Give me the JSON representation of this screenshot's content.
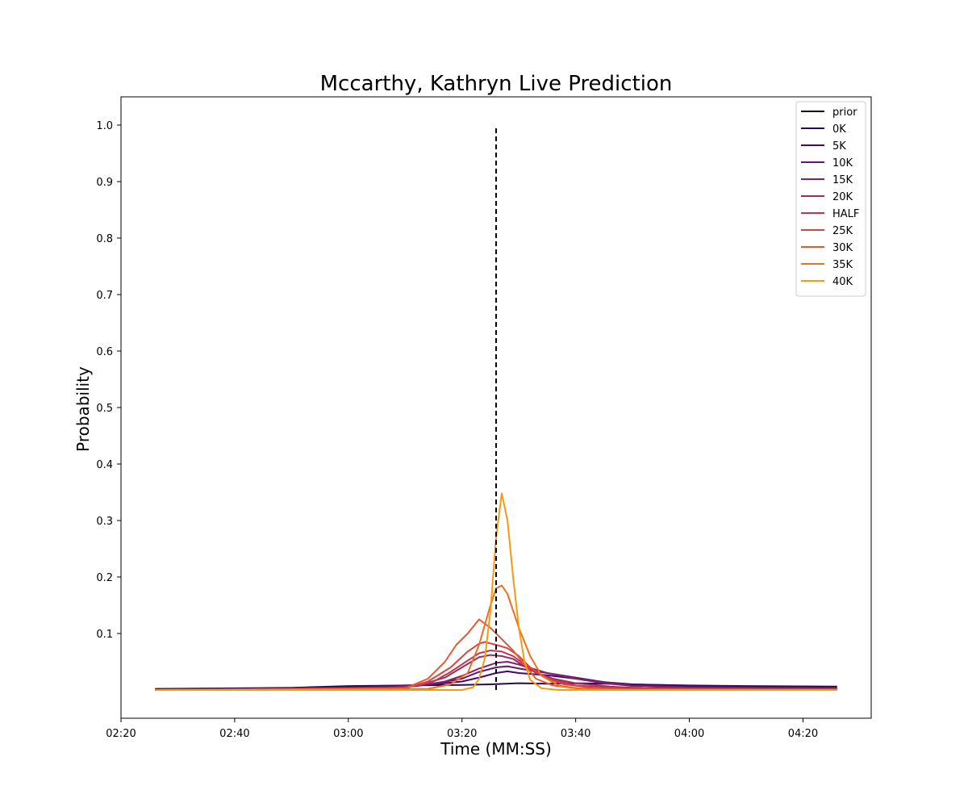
{
  "chart_data": {
    "type": "line",
    "title": "Mccarthy, Kathryn Live Prediction",
    "xlabel": "Time (MM:SS)",
    "ylabel": "Probability",
    "x_range_seconds": [
      140,
      272
    ],
    "ylim": [
      -0.05,
      1.05
    ],
    "x_tick_values": [
      140,
      160,
      180,
      200,
      220,
      240,
      260
    ],
    "x_tick_labels": [
      "02:20",
      "02:40",
      "03:00",
      "03:20",
      "03:40",
      "04:00",
      "04:20"
    ],
    "y_ticks": [
      0.1,
      0.2,
      0.3,
      0.4,
      0.5,
      0.6,
      0.7,
      0.8,
      0.9,
      1.0
    ],
    "y_tick_labels": [
      "0.1",
      "0.2",
      "0.3",
      "0.4",
      "0.5",
      "0.6",
      "0.7",
      "0.8",
      "0.9",
      "1.0"
    ],
    "grid": false,
    "legend_position": "top-right",
    "prior": {
      "name": "prior",
      "x": [
        206,
        206
      ],
      "y": [
        0,
        1.0
      ],
      "color": "#000000",
      "dash": true
    },
    "series": [
      {
        "name": "0K",
        "color": "#2d0a4e",
        "x": [
          146,
          160,
          170,
          180,
          190,
          200,
          205,
          210,
          215,
          220,
          225,
          230,
          240,
          250,
          266
        ],
        "y": [
          0.002,
          0.003,
          0.004,
          0.007,
          0.008,
          0.009,
          0.01,
          0.012,
          0.011,
          0.012,
          0.011,
          0.01,
          0.008,
          0.007,
          0.006
        ]
      },
      {
        "name": "5K",
        "color": "#460b68",
        "x": [
          146,
          170,
          180,
          190,
          195,
          200,
          203,
          206,
          208,
          210,
          215,
          220,
          225,
          230,
          240,
          250,
          266
        ],
        "y": [
          0.001,
          0.003,
          0.005,
          0.008,
          0.01,
          0.015,
          0.022,
          0.03,
          0.033,
          0.03,
          0.026,
          0.02,
          0.014,
          0.01,
          0.007,
          0.005,
          0.004
        ]
      },
      {
        "name": "10K",
        "color": "#65156e",
        "x": [
          146,
          180,
          190,
          195,
          200,
          203,
          206,
          208,
          210,
          215,
          220,
          225,
          230,
          240,
          266
        ],
        "y": [
          0.0,
          0.003,
          0.007,
          0.011,
          0.02,
          0.032,
          0.04,
          0.042,
          0.038,
          0.03,
          0.022,
          0.014,
          0.008,
          0.005,
          0.003
        ]
      },
      {
        "name": "15K",
        "color": "#832169",
        "x": [
          146,
          185,
          192,
          197,
          200,
          203,
          206,
          208,
          210,
          215,
          220,
          225,
          230,
          240,
          266
        ],
        "y": [
          0.0,
          0.003,
          0.007,
          0.015,
          0.025,
          0.038,
          0.048,
          0.05,
          0.045,
          0.03,
          0.02,
          0.012,
          0.007,
          0.004,
          0.003
        ]
      },
      {
        "name": "20K",
        "color": "#a02c5e",
        "x": [
          146,
          188,
          193,
          197,
          200,
          203,
          205,
          207,
          209,
          212,
          216,
          220,
          226,
          232,
          240,
          266
        ],
        "y": [
          0.0,
          0.004,
          0.01,
          0.022,
          0.04,
          0.058,
          0.062,
          0.06,
          0.055,
          0.035,
          0.02,
          0.012,
          0.006,
          0.003,
          0.002,
          0.001
        ]
      },
      {
        "name": "HALF",
        "color": "#bb3754",
        "x": [
          146,
          190,
          195,
          198,
          201,
          203,
          205,
          207,
          209,
          211,
          213,
          216,
          220,
          228,
          266
        ],
        "y": [
          0.0,
          0.004,
          0.015,
          0.032,
          0.052,
          0.065,
          0.07,
          0.068,
          0.06,
          0.045,
          0.03,
          0.018,
          0.008,
          0.003,
          0.001
        ]
      },
      {
        "name": "25K",
        "color": "#d24644",
        "x": [
          146,
          190,
          194,
          198,
          201,
          203,
          204,
          206,
          208,
          210,
          212,
          215,
          218,
          222,
          230,
          266
        ],
        "y": [
          0.0,
          0.003,
          0.015,
          0.04,
          0.068,
          0.082,
          0.085,
          0.08,
          0.074,
          0.06,
          0.04,
          0.02,
          0.01,
          0.005,
          0.002,
          0.001
        ]
      },
      {
        "name": "30K",
        "color": "#e45a31",
        "x": [
          146,
          190,
          194,
          197,
          199,
          201,
          203,
          205,
          207,
          209,
          211,
          213,
          216,
          220,
          226,
          266
        ],
        "y": [
          0.0,
          0.003,
          0.02,
          0.05,
          0.08,
          0.1,
          0.125,
          0.11,
          0.09,
          0.07,
          0.045,
          0.02,
          0.008,
          0.003,
          0.001,
          0.0
        ]
      },
      {
        "name": "35K",
        "color": "#f06f1e",
        "x": [
          146,
          194,
          198,
          201,
          203,
          205,
          206,
          207,
          208,
          210,
          212,
          214,
          217,
          221,
          228,
          266
        ],
        "y": [
          0.0,
          0.002,
          0.01,
          0.03,
          0.08,
          0.15,
          0.18,
          0.185,
          0.17,
          0.11,
          0.06,
          0.025,
          0.008,
          0.002,
          0.0,
          0.0
        ]
      },
      {
        "name": "40K",
        "color": "#f89a10",
        "x": [
          146,
          200,
          202,
          203,
          204,
          205,
          206,
          207,
          208,
          209,
          210,
          211,
          212,
          214,
          217,
          266
        ],
        "y": [
          0.0,
          0.0,
          0.005,
          0.02,
          0.055,
          0.14,
          0.27,
          0.348,
          0.3,
          0.2,
          0.11,
          0.05,
          0.018,
          0.003,
          0.0,
          0.0
        ]
      }
    ]
  }
}
